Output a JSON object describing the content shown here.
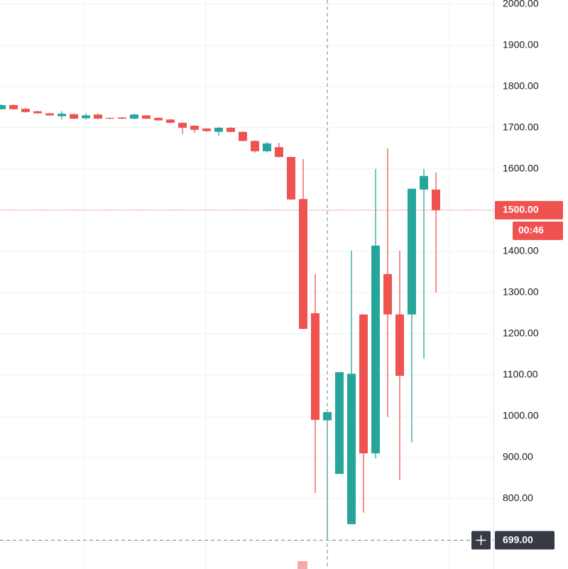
{
  "chart_data": {
    "type": "candlestick",
    "series": [
      {
        "name": null,
        "up_color": "#26a69a",
        "down_color": "#ef5350",
        "open": [
          1745,
          1755,
          1746,
          1740,
          1735,
          1728,
          1733,
          1723,
          1732,
          1724,
          1725,
          1722,
          1730,
          1724,
          1720,
          1712,
          1705,
          1698,
          1690,
          1700,
          1690,
          1668,
          1643,
          1653,
          1629,
          1527,
          1250,
          990,
          860,
          738,
          1247,
          910,
          1345,
          1247,
          1247,
          1550,
          1550
        ],
        "high": [
          1757,
          1757,
          1748,
          1741,
          1736,
          1740,
          1734,
          1735,
          1735,
          1725,
          1726,
          1734,
          1731,
          1725,
          1721,
          1713,
          1706,
          1699,
          1702,
          1701,
          1691,
          1669,
          1665,
          1663,
          1630,
          1624,
          1345,
          1010,
          1107,
          1402,
          1247,
          1600,
          1650,
          1402,
          1552,
          1600,
          1591
        ],
        "low": [
          1744,
          1744,
          1737,
          1734,
          1729,
          1720,
          1721,
          1720,
          1721,
          1721,
          1721,
          1721,
          1721,
          1717,
          1711,
          1685,
          1688,
          1690,
          1680,
          1689,
          1667,
          1640,
          1640,
          1628,
          1525,
          1211,
          814,
          700,
          860,
          738,
          766,
          898,
          998,
          845,
          936,
          1140,
          1300
        ],
        "close": [
          1755,
          1745,
          1738,
          1735,
          1730,
          1734,
          1722,
          1730,
          1722,
          1722,
          1722,
          1732,
          1722,
          1718,
          1712,
          1700,
          1695,
          1692,
          1700,
          1690,
          1668,
          1643,
          1662,
          1629,
          1526,
          1212,
          991,
          1010,
          1107,
          1103,
          910,
          1414,
          1247,
          1098,
          1552,
          1583,
          1500
        ]
      }
    ],
    "ylim": [
      631,
      2010
    ],
    "yticks": [
      {
        "value": 800,
        "label": "800.00"
      },
      {
        "value": 900,
        "label": "900.00"
      },
      {
        "value": 1000,
        "label": "1000.00"
      },
      {
        "value": 1100,
        "label": "1100.00"
      },
      {
        "value": 1200,
        "label": "1200.00"
      },
      {
        "value": 1300,
        "label": "1300.00"
      },
      {
        "value": 1400,
        "label": "1400.00"
      },
      {
        "value": 1500,
        "label": "1500.00"
      },
      {
        "value": 1600,
        "label": "1600.00"
      },
      {
        "value": 1700,
        "label": "1700.00"
      },
      {
        "value": 1800,
        "label": "1800.00"
      },
      {
        "value": 1900,
        "label": "1900.00"
      },
      {
        "value": 2000,
        "label": "2000.00"
      }
    ],
    "grid": true,
    "last_price": {
      "value": 1500,
      "label": "1500.00",
      "color": "#ef5350"
    },
    "countdown": "00:46",
    "crosshair": {
      "value": 699,
      "label": "699.00"
    }
  }
}
